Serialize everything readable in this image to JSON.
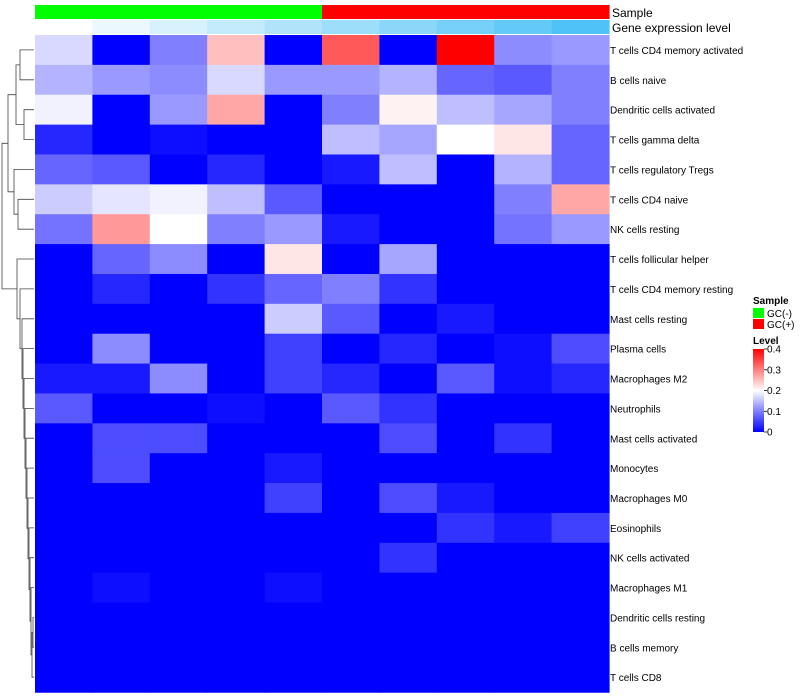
{
  "chart_data": {
    "type": "heatmap",
    "annotation_labels": {
      "sample": "Sample",
      "expression": "Gene expression level"
    },
    "rows": [
      "T cells CD4 memory activated",
      "B cells naive",
      "Dendritic cells activated",
      "T cells gamma delta",
      "T cells regulatory  Tregs",
      "T cells CD4 naive",
      "NK cells resting",
      "T cells follicular helper",
      "T cells CD4 memory resting",
      "Mast cells resting",
      "Plasma cells",
      "Macrophages M2",
      "Neutrophils",
      "Mast cells activated",
      "Monocytes",
      "Macrophages M0",
      "Eosinophils",
      "NK cells activated",
      "Macrophages M1",
      "Dendritic cells resting",
      "B cells memory",
      "T cells CD8"
    ],
    "sample_groups": [
      "GC(-)",
      "GC(-)",
      "GC(-)",
      "GC(-)",
      "GC(-)",
      "GC(+)",
      "GC(+)",
      "GC(+)",
      "GC(+)",
      "GC(+)"
    ],
    "expression_levels": [
      0.0,
      0.02,
      0.04,
      0.06,
      0.08,
      0.1,
      0.12,
      0.14,
      0.16,
      0.18
    ],
    "values": [
      [
        0.17,
        0.0,
        0.1,
        0.25,
        0.0,
        0.33,
        0.0,
        0.4,
        0.11,
        0.12
      ],
      [
        0.14,
        0.12,
        0.11,
        0.17,
        0.12,
        0.12,
        0.14,
        0.08,
        0.07,
        0.1
      ],
      [
        0.19,
        0.0,
        0.12,
        0.27,
        0.0,
        0.1,
        0.21,
        0.15,
        0.13,
        0.1
      ],
      [
        0.03,
        0.0,
        0.01,
        0.0,
        0.0,
        0.15,
        0.13,
        0.2,
        0.22,
        0.08
      ],
      [
        0.08,
        0.07,
        0.0,
        0.03,
        0.0,
        0.02,
        0.15,
        0.0,
        0.14,
        0.08
      ],
      [
        0.16,
        0.18,
        0.19,
        0.15,
        0.07,
        0.0,
        0.0,
        0.0,
        0.1,
        0.27
      ],
      [
        0.09,
        0.28,
        0.2,
        0.1,
        0.12,
        0.02,
        0.0,
        0.0,
        0.09,
        0.12
      ],
      [
        0.0,
        0.08,
        0.11,
        0.0,
        0.22,
        0.0,
        0.13,
        0.0,
        0.0,
        0.0
      ],
      [
        0.0,
        0.03,
        0.0,
        0.04,
        0.08,
        0.1,
        0.04,
        0.0,
        0.0,
        0.0
      ],
      [
        0.0,
        0.0,
        0.0,
        0.0,
        0.16,
        0.07,
        0.0,
        0.02,
        0.0,
        0.0
      ],
      [
        0.0,
        0.11,
        0.0,
        0.0,
        0.05,
        0.0,
        0.03,
        0.0,
        0.01,
        0.06
      ],
      [
        0.02,
        0.02,
        0.11,
        0.0,
        0.05,
        0.03,
        0.0,
        0.07,
        0.01,
        0.03
      ],
      [
        0.07,
        0.0,
        0.0,
        0.01,
        0.0,
        0.07,
        0.04,
        0.0,
        0.0,
        0.0
      ],
      [
        0.0,
        0.06,
        0.06,
        0.0,
        0.0,
        0.0,
        0.06,
        0.0,
        0.04,
        0.0
      ],
      [
        0.0,
        0.06,
        0.0,
        0.0,
        0.02,
        0.0,
        0.0,
        0.0,
        0.0,
        0.0
      ],
      [
        0.0,
        0.0,
        0.0,
        0.0,
        0.05,
        0.0,
        0.06,
        0.02,
        0.0,
        0.0
      ],
      [
        0.0,
        0.0,
        0.0,
        0.0,
        0.0,
        0.0,
        0.0,
        0.04,
        0.02,
        0.05
      ],
      [
        0.0,
        0.0,
        0.0,
        0.0,
        0.0,
        0.0,
        0.04,
        0.0,
        0.0,
        0.0
      ],
      [
        0.0,
        0.01,
        0.0,
        0.0,
        0.01,
        0.0,
        0.0,
        0.0,
        0.0,
        0.0
      ],
      [
        0.0,
        0.0,
        0.0,
        0.0,
        0.0,
        0.0,
        0.0,
        0.0,
        0.0,
        0.0
      ],
      [
        0.0,
        0.0,
        0.0,
        0.0,
        0.0,
        0.0,
        0.0,
        0.0,
        0.0,
        0.0
      ],
      [
        0.0,
        0.0,
        0.0,
        0.0,
        0.0,
        0.0,
        0.0,
        0.0,
        0.0,
        0.0
      ]
    ],
    "color_scale": {
      "min": 0,
      "max": 0.4,
      "stops": [
        "#0000ff",
        "#ffffff",
        "#ff0000"
      ]
    },
    "legend": {
      "sample_title": "Sample",
      "sample_items": [
        {
          "label": "GC(-)",
          "color": "#00ff00"
        },
        {
          "label": "GC(+)",
          "color": "#ff0000"
        }
      ],
      "level_title": "Level",
      "level_ticks": [
        "0.4",
        "0.3",
        "0.2",
        "0.1",
        "0"
      ],
      "level_tick_values": [
        0.4,
        0.3,
        0.2,
        0.1,
        0
      ]
    },
    "expression_scale": {
      "stops": [
        "#ffffff",
        "#4fc3f7"
      ]
    }
  }
}
